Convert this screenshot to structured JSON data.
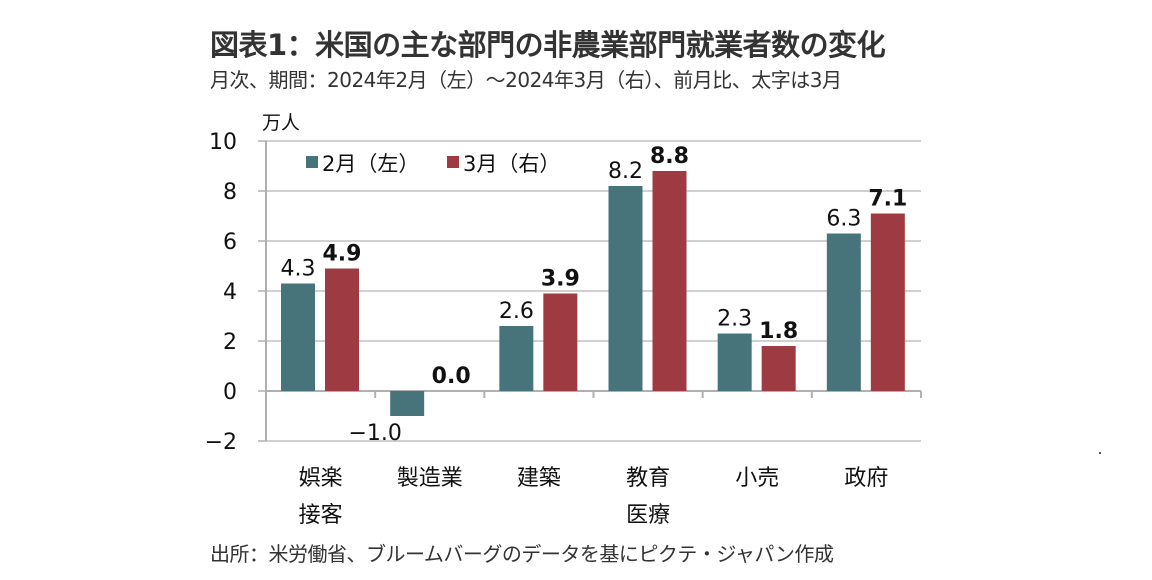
{
  "header": {
    "title": "図表1：米国の主な部門の非農業部門就業者数の変化",
    "subtitle": "月次、期間：2024年2月（左）～2024年3月（右）、前月比、太字は3月"
  },
  "footer": {
    "source": "出所：米労働省、ブルームバーグのデータを基にピクテ・ジャパン作成"
  },
  "colors": {
    "feb": "#47737a",
    "mar": "#9e3b42",
    "grid": "#d0d0d0",
    "axis": "#b0b0b0"
  },
  "chart_data": {
    "type": "bar",
    "title": "図表1：米国の主な部門の非農業部門就業者数の変化",
    "ylabel": "万人",
    "xlabel": "",
    "ylim": [
      -2,
      10
    ],
    "yticks": [
      -2,
      0,
      2,
      4,
      6,
      8,
      10
    ],
    "ytick_labels": [
      "−2",
      "0",
      "2",
      "4",
      "6",
      "8",
      "10"
    ],
    "grid": true,
    "legend_position": "top-left",
    "categories": [
      [
        "娯楽",
        "接客"
      ],
      [
        "製造業"
      ],
      [
        "建築"
      ],
      [
        "教育",
        "医療"
      ],
      [
        "小売"
      ],
      [
        "政府"
      ]
    ],
    "series": [
      {
        "name": "2月（左）",
        "color": "#47737a",
        "bold_labels": false,
        "values": [
          4.3,
          -1.0,
          2.6,
          8.2,
          2.3,
          6.3
        ],
        "labels": [
          "4.3",
          "−1.0",
          "2.6",
          "8.2",
          "2.3",
          "6.3"
        ]
      },
      {
        "name": "3月（右）",
        "color": "#9e3b42",
        "bold_labels": true,
        "values": [
          4.9,
          0.0,
          3.9,
          8.8,
          1.8,
          7.1
        ],
        "labels": [
          "4.9",
          "0.0",
          "3.9",
          "8.8",
          "1.8",
          "7.1"
        ]
      }
    ]
  }
}
